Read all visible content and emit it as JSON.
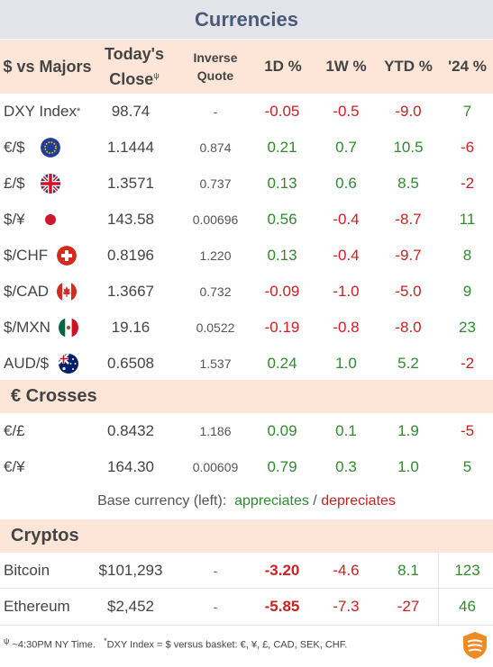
{
  "title": "Currencies",
  "headers": {
    "col1": "$ vs Majors",
    "col2": "Today's Close",
    "col2_mark": "ψ",
    "col3": "Inverse Quote",
    "col4": "1D %",
    "col5": "1W %",
    "col6": "YTD %",
    "col7": "'24 %"
  },
  "majors": [
    {
      "label": "DXY Index",
      "mark": "*",
      "close": "98.74",
      "inverse": "-",
      "d1": "-0.05",
      "w1": "-0.5",
      "ytd": "-9.0",
      "y24": "7"
    },
    {
      "label": "€/$",
      "flag": "eu-flag-icon",
      "close": "1.1444",
      "inverse": "0.874",
      "d1": "0.21",
      "w1": "0.7",
      "ytd": "10.5",
      "y24": "-6"
    },
    {
      "label": "£/$",
      "flag": "uk-flag-icon",
      "close": "1.3571",
      "inverse": "0.737",
      "d1": "0.13",
      "w1": "0.6",
      "ytd": "8.5",
      "y24": "-2"
    },
    {
      "label": "$/¥",
      "flag": "japan-flag-icon",
      "close": "143.58",
      "inverse": "0.00696",
      "d1": "0.56",
      "w1": "-0.4",
      "ytd": "-8.7",
      "y24": "11"
    },
    {
      "label": "$/CHF",
      "flag": "swiss-flag-icon",
      "close": "0.8196",
      "inverse": "1.220",
      "d1": "0.13",
      "w1": "-0.4",
      "ytd": "-9.7",
      "y24": "8"
    },
    {
      "label": "$/CAD",
      "flag": "canada-flag-icon",
      "close": "1.3667",
      "inverse": "0.732",
      "d1": "-0.09",
      "w1": "-1.0",
      "ytd": "-5.0",
      "y24": "9"
    },
    {
      "label": "$/MXN",
      "flag": "mexico-flag-icon",
      "close": "19.16",
      "inverse": "0.0522",
      "d1": "-0.19",
      "w1": "-0.8",
      "ytd": "-8.0",
      "y24": "23"
    },
    {
      "label": "AUD/$",
      "flag": "australia-flag-icon",
      "close": "0.6508",
      "inverse": "1.537",
      "d1": "0.24",
      "w1": "1.0",
      "ytd": "5.2",
      "y24": "-2"
    }
  ],
  "crosses_title": "€ Crosses",
  "crosses": [
    {
      "label": "€/£",
      "close": "0.8432",
      "inverse": "1.186",
      "d1": "0.09",
      "w1": "0.1",
      "ytd": "1.9",
      "y24": "-5"
    },
    {
      "label": "€/¥",
      "close": "164.30",
      "inverse": "0.00609",
      "d1": "0.79",
      "w1": "0.3",
      "ytd": "1.0",
      "y24": "5"
    }
  ],
  "legend": {
    "prefix": "Base currency (left):",
    "up": "appreciates",
    "sep": "/",
    "down": "depreciates"
  },
  "cryptos_title": "Cryptos",
  "cryptos": [
    {
      "label": "Bitcoin",
      "close": "$101,293",
      "inverse": "-",
      "d1": "-3.20",
      "w1": "-4.6",
      "ytd": "8.1",
      "y24": "123"
    },
    {
      "label": "Ethereum",
      "close": "$2,452",
      "inverse": "-",
      "d1": "-5.85",
      "w1": "-7.3",
      "ytd": "-27",
      "y24": "46"
    }
  ],
  "footnote": {
    "mark1": "ψ",
    "text1": "~4:30PM NY Time.",
    "mark2": "*",
    "text2": "DXY Index = $ versus basket: €, ¥, £, CAD, SEK, CHF."
  },
  "colors": {
    "positive": "#2e8b2e",
    "negative": "#cc2020",
    "header_bg": "#fde6d8",
    "title_bg": "#e2e4ea",
    "title_text": "#4a5a78",
    "logo": "#f08a24"
  }
}
